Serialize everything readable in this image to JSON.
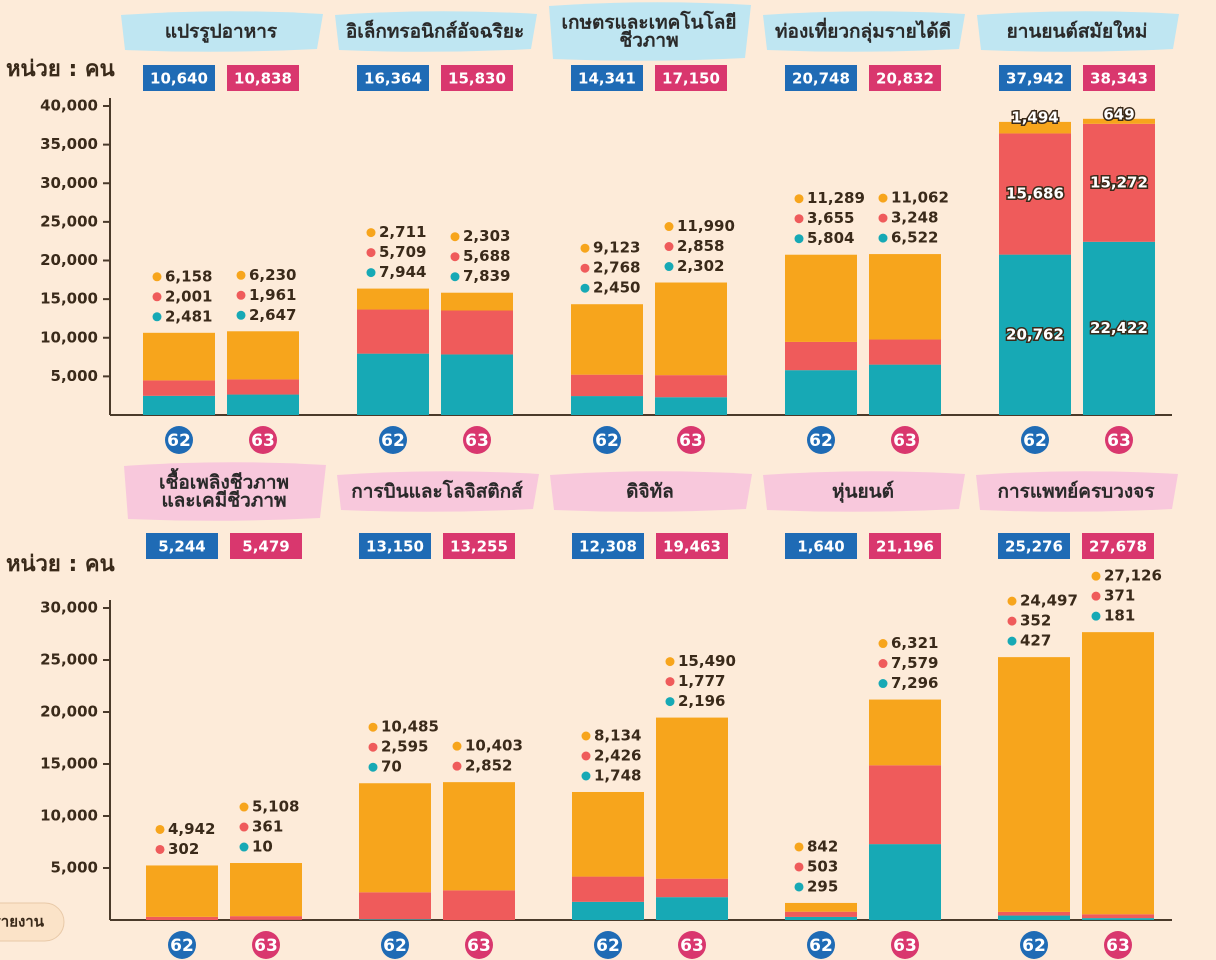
{
  "chart_data": [
    {
      "type": "bar",
      "stacked": true,
      "unit_label": "หน่วย : คน",
      "colors": [
        "#17a9b5",
        "#ef5b5b",
        "#f7a51c"
      ],
      "title_color": "#bfe6f2",
      "ylim": [
        0,
        40000
      ],
      "yticks": [
        {
          "value": 5000,
          "label": "5,000"
        },
        {
          "value": 10000,
          "label": "10,000"
        },
        {
          "value": 15000,
          "label": "15,000"
        },
        {
          "value": 20000,
          "label": "20,000"
        },
        {
          "value": 25000,
          "label": "25,000"
        },
        {
          "value": 30000,
          "label": "30,000"
        },
        {
          "value": 35000,
          "label": "35,000"
        },
        {
          "value": 40000,
          "label": "40,000"
        }
      ],
      "groups": [
        {
          "title_lines": [
            "แปรรูปอาหาร"
          ],
          "bars": [
            {
              "year": "62",
              "total": 10640,
              "total_label": "10,640",
              "values": [
                2481,
                2001,
                6158
              ],
              "value_labels": [
                "2,481",
                "2,001",
                "6,158"
              ]
            },
            {
              "year": "63",
              "total": 10838,
              "total_label": "10,838",
              "values": [
                2647,
                1961,
                6230
              ],
              "value_labels": [
                "2,647",
                "1,961",
                "6,230"
              ]
            }
          ]
        },
        {
          "title_lines": [
            "อิเล็กทรอนิกส์อัจฉริยะ"
          ],
          "bars": [
            {
              "year": "62",
              "total": 16364,
              "total_label": "16,364",
              "values": [
                7944,
                5709,
                2711
              ],
              "value_labels": [
                "7,944",
                "5,709",
                "2,711"
              ]
            },
            {
              "year": "63",
              "total": 15830,
              "total_label": "15,830",
              "values": [
                7839,
                5688,
                2303
              ],
              "value_labels": [
                "7,839",
                "5,688",
                "2,303"
              ]
            }
          ]
        },
        {
          "title_lines": [
            "เกษตรและเทคโนโลยี",
            "ชีวภาพ"
          ],
          "bars": [
            {
              "year": "62",
              "total": 14341,
              "total_label": "14,341",
              "values": [
                2450,
                2768,
                9123
              ],
              "value_labels": [
                "2,450",
                "2,768",
                "9,123"
              ]
            },
            {
              "year": "63",
              "total": 17150,
              "total_label": "17,150",
              "values": [
                2302,
                2858,
                11990
              ],
              "value_labels": [
                "2,302",
                "2,858",
                "11,990"
              ]
            }
          ]
        },
        {
          "title_lines": [
            "ท่องเที่ยวกลุ่มรายได้ดี"
          ],
          "bars": [
            {
              "year": "62",
              "total": 20748,
              "total_label": "20,748",
              "values": [
                5804,
                3655,
                11289
              ],
              "value_labels": [
                "5,804",
                "3,655",
                "11,289"
              ]
            },
            {
              "year": "63",
              "total": 20832,
              "total_label": "20,832",
              "values": [
                6522,
                3248,
                11062
              ],
              "value_labels": [
                "6,522",
                "3,248",
                "11,062"
              ]
            }
          ]
        },
        {
          "title_lines": [
            "ยานยนต์สมัยใหม่"
          ],
          "labels_inside": true,
          "bars": [
            {
              "year": "62",
              "total": 37942,
              "total_label": "37,942",
              "values": [
                20762,
                15686,
                1494
              ],
              "value_labels": [
                "20,762",
                "15,686",
                "1,494"
              ]
            },
            {
              "year": "63",
              "total": 38343,
              "total_label": "38,343",
              "values": [
                22422,
                15272,
                649
              ],
              "value_labels": [
                "22,422",
                "15,272",
                "649"
              ]
            }
          ]
        }
      ]
    },
    {
      "type": "bar",
      "stacked": true,
      "unit_label": "หน่วย : คน",
      "colors": [
        "#17a9b5",
        "#ef5b5b",
        "#f7a51c"
      ],
      "title_color": "#f8c8dc",
      "ylim": [
        0,
        30000
      ],
      "yticks": [
        {
          "value": 5000,
          "label": "5,000"
        },
        {
          "value": 10000,
          "label": "10,000"
        },
        {
          "value": 15000,
          "label": "15,000"
        },
        {
          "value": 20000,
          "label": "20,000"
        },
        {
          "value": 25000,
          "label": "25,000"
        },
        {
          "value": 30000,
          "label": "30,000"
        }
      ],
      "groups": [
        {
          "title_lines": [
            "เชื้อเพลิงชีวภาพ",
            "และเคมีชีวภาพ"
          ],
          "bars": [
            {
              "year": "62",
              "total": 5244,
              "total_label": "5,244",
              "values": [
                null,
                302,
                4942
              ],
              "value_labels": [
                null,
                "302",
                "4,942"
              ]
            },
            {
              "year": "63",
              "total": 5479,
              "total_label": "5,479",
              "values": [
                10,
                361,
                5108
              ],
              "value_labels": [
                "10",
                "361",
                "5,108"
              ]
            }
          ]
        },
        {
          "title_lines": [
            "การบินและโลจิสติกส์"
          ],
          "bars": [
            {
              "year": "62",
              "total": 13150,
              "total_label": "13,150",
              "values": [
                70,
                2595,
                10485
              ],
              "value_labels": [
                "70",
                "2,595",
                "10,485"
              ]
            },
            {
              "year": "63",
              "total": 13255,
              "total_label": "13,255",
              "values": [
                null,
                2852,
                10403
              ],
              "value_labels": [
                null,
                "2,852",
                "10,403"
              ]
            }
          ]
        },
        {
          "title_lines": [
            "ดิจิทัล"
          ],
          "bars": [
            {
              "year": "62",
              "total": 12308,
              "total_label": "12,308",
              "values": [
                1748,
                2426,
                8134
              ],
              "value_labels": [
                "1,748",
                "2,426",
                "8,134"
              ]
            },
            {
              "year": "63",
              "total": 19463,
              "total_label": "19,463",
              "values": [
                2196,
                1777,
                15490
              ],
              "value_labels": [
                "2,196",
                "1,777",
                "15,490"
              ]
            }
          ]
        },
        {
          "title_lines": [
            "หุ่นยนต์"
          ],
          "bars": [
            {
              "year": "62",
              "total": 1640,
              "total_label": "1,640",
              "values": [
                295,
                503,
                842
              ],
              "value_labels": [
                "295",
                "503",
                "842"
              ]
            },
            {
              "year": "63",
              "total": 21196,
              "total_label": "21,196",
              "values": [
                7296,
                7579,
                6321
              ],
              "value_labels": [
                "7,296",
                "7,579",
                "6,321"
              ]
            }
          ]
        },
        {
          "title_lines": [
            "การแพทย์ครบวงจร"
          ],
          "bars": [
            {
              "year": "62",
              "total": 25276,
              "total_label": "25,276",
              "values": [
                427,
                352,
                24497
              ],
              "value_labels": [
                "427",
                "352",
                "24,497"
              ]
            },
            {
              "year": "63",
              "total": 27678,
              "total_label": "27,678",
              "values": [
                181,
                371,
                27126
              ],
              "value_labels": [
                "181",
                "371",
                "27,126"
              ]
            }
          ]
        }
      ]
    }
  ],
  "button": "รายงาน"
}
